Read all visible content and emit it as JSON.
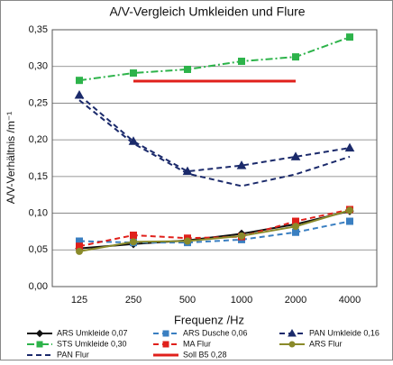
{
  "chart_data": {
    "type": "line",
    "title": "A/V-Vergleich Umkleiden und Flure",
    "xlabel": "Frequenz /Hz",
    "ylabel": "A/V-Verhältnis /m⁻¹",
    "categories": [
      "125",
      "250",
      "500",
      "1000",
      "2000",
      "4000"
    ],
    "ylim": [
      0,
      0.35
    ],
    "yticks": [
      {
        "value": 0,
        "label": "0,00"
      },
      {
        "value": 0.05,
        "label": "0,05"
      },
      {
        "value": 0.1,
        "label": "0,10"
      },
      {
        "value": 0.15,
        "label": "0,15"
      },
      {
        "value": 0.2,
        "label": "0,20"
      },
      {
        "value": 0.25,
        "label": "0,25"
      },
      {
        "value": 0.3,
        "label": "0,30"
      },
      {
        "value": 0.35,
        "label": "0,35"
      }
    ],
    "grid": true,
    "legend": "bottom",
    "series": [
      {
        "name": "ARS Umkleide 0,07",
        "color": "#111111",
        "marker": "diamond",
        "dash": "solid",
        "values": [
          0.052,
          0.058,
          0.063,
          0.072,
          0.085,
          0.103
        ]
      },
      {
        "name": "ARS Dusche 0,06",
        "color": "#3a7fc1",
        "marker": "square",
        "dash": "dash",
        "values": [
          0.062,
          0.06,
          0.06,
          0.064,
          0.074,
          0.089
        ]
      },
      {
        "name": "PAN Umkleide 0,16",
        "color": "#1b2a6b",
        "marker": "triangle",
        "dash": "dash",
        "values": [
          0.261,
          0.198,
          0.157,
          0.165,
          0.177,
          0.189
        ]
      },
      {
        "name": "STS Umkleide 0,30",
        "color": "#2db34a",
        "marker": "square",
        "dash": "dashdot",
        "values": [
          0.281,
          0.291,
          0.296,
          0.307,
          0.313,
          0.34
        ]
      },
      {
        "name": "MA Flur",
        "color": "#e0201b",
        "marker": "square",
        "dash": "dash",
        "values": [
          0.055,
          0.07,
          0.066,
          0.068,
          0.089,
          0.105
        ]
      },
      {
        "name": "ARS Flur",
        "color": "#8a8a2a",
        "marker": "circle",
        "dash": "solid",
        "values": [
          0.048,
          0.061,
          0.062,
          0.069,
          0.082,
          0.104
        ]
      },
      {
        "name": "PAN Flur",
        "color": "#1b2a6b",
        "marker": "none",
        "dash": "dash",
        "values": [
          0.254,
          0.195,
          0.154,
          0.137,
          0.153,
          0.177
        ]
      },
      {
        "name": "Soll B5 0,28",
        "color": "#e0201b",
        "marker": "none",
        "dash": "thick",
        "values": [
          null,
          0.28,
          0.28,
          0.28,
          0.28,
          null
        ]
      }
    ]
  }
}
